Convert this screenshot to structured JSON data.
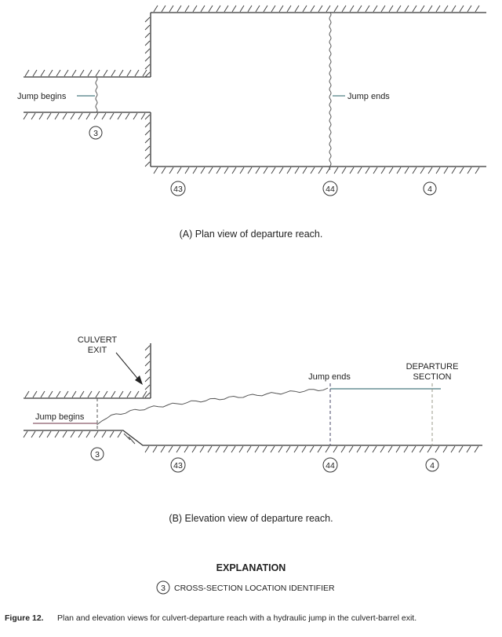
{
  "plan": {
    "jump_begins": "Jump begins",
    "jump_ends": "Jump ends",
    "sections": [
      "3",
      "43",
      "44",
      "4"
    ],
    "caption": "(A) Plan view of departure reach."
  },
  "elevation": {
    "culvert_exit_line1": "CULVERT",
    "culvert_exit_line2": "EXIT",
    "jump_begins": "Jump begins",
    "jump_ends": "Jump ends",
    "departure_line1": "DEPARTURE",
    "departure_line2": "SECTION",
    "sections": [
      "3",
      "43",
      "44",
      "4"
    ],
    "caption": "(B) Elevation view of departure reach."
  },
  "explanation": {
    "title": "EXPLANATION",
    "symbol": "3",
    "text": "CROSS-SECTION LOCATION IDENTIFIER"
  },
  "figure": {
    "label": "Figure 12.",
    "caption": "Plan and elevation views for culvert-departure reach with a hydraulic jump in the culvert-barrel exit."
  },
  "colors": {
    "line": "#333333",
    "water": "#4a7a80",
    "jump_begins_line": "#8a5a6a"
  }
}
